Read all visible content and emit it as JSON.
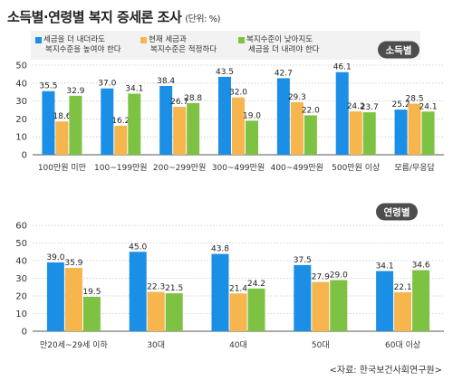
{
  "title": "소득별·연령별 복지 증세론 조사",
  "unit": "(단위: %)",
  "legend": [
    {
      "line1": "세금을 더 내더라도",
      "line2": "복지수준을 높여야 한다",
      "color": "#1b8fe6"
    },
    {
      "line1": "현재 세금과",
      "line2": "복지수준은 적정하다",
      "color": "#f6b54d"
    },
    {
      "line1": "복지수준이 낮아지도",
      "line2": "세금을 더 내려야 한다",
      "color": "#7dc242"
    }
  ],
  "source": "<자료: 한국보건사회연구원>",
  "chart_data": [
    {
      "type": "bar",
      "badge": "소득별",
      "categories": [
        "100만원 미만",
        "100~199만원",
        "200~299만원",
        "300~499만원",
        "400~499만원",
        "500만원 이상",
        "모름/무응답"
      ],
      "series": [
        {
          "name": "세금을 더 내더라도 복지수준을 높여야 한다",
          "values": [
            35.5,
            37.0,
            38.4,
            43.5,
            42.7,
            46.1,
            25.2
          ]
        },
        {
          "name": "현재 세금과 복지수준은 적정하다",
          "values": [
            18.6,
            16.2,
            26.7,
            32.0,
            29.3,
            24.2,
            28.5
          ]
        },
        {
          "name": "복지수준이 낮아지도 세금을 더 내려야 한다",
          "values": [
            32.9,
            34.1,
            28.8,
            19.0,
            22.0,
            23.7,
            24.1
          ]
        }
      ],
      "ylim": [
        0,
        50
      ],
      "yticks": [
        0,
        10,
        20,
        30,
        40,
        50
      ]
    },
    {
      "type": "bar",
      "badge": "연령별",
      "categories": [
        "만20세~29세 이하",
        "30대",
        "40대",
        "50대",
        "60대 이상"
      ],
      "series": [
        {
          "name": "세금을 더 내더라도 복지수준을 높여야 한다",
          "values": [
            39.0,
            45.0,
            43.8,
            37.5,
            34.1
          ]
        },
        {
          "name": "현재 세금과 복지수준은 적정하다",
          "values": [
            35.9,
            22.3,
            21.4,
            27.9,
            22.1
          ]
        },
        {
          "name": "복지수준이 낮아지도 세금을 더 내려야 한다",
          "values": [
            19.5,
            21.5,
            24.2,
            29.0,
            34.6
          ]
        }
      ],
      "ylim": [
        0,
        60
      ],
      "yticks": [
        0,
        10,
        20,
        30,
        40,
        50,
        60
      ]
    }
  ]
}
